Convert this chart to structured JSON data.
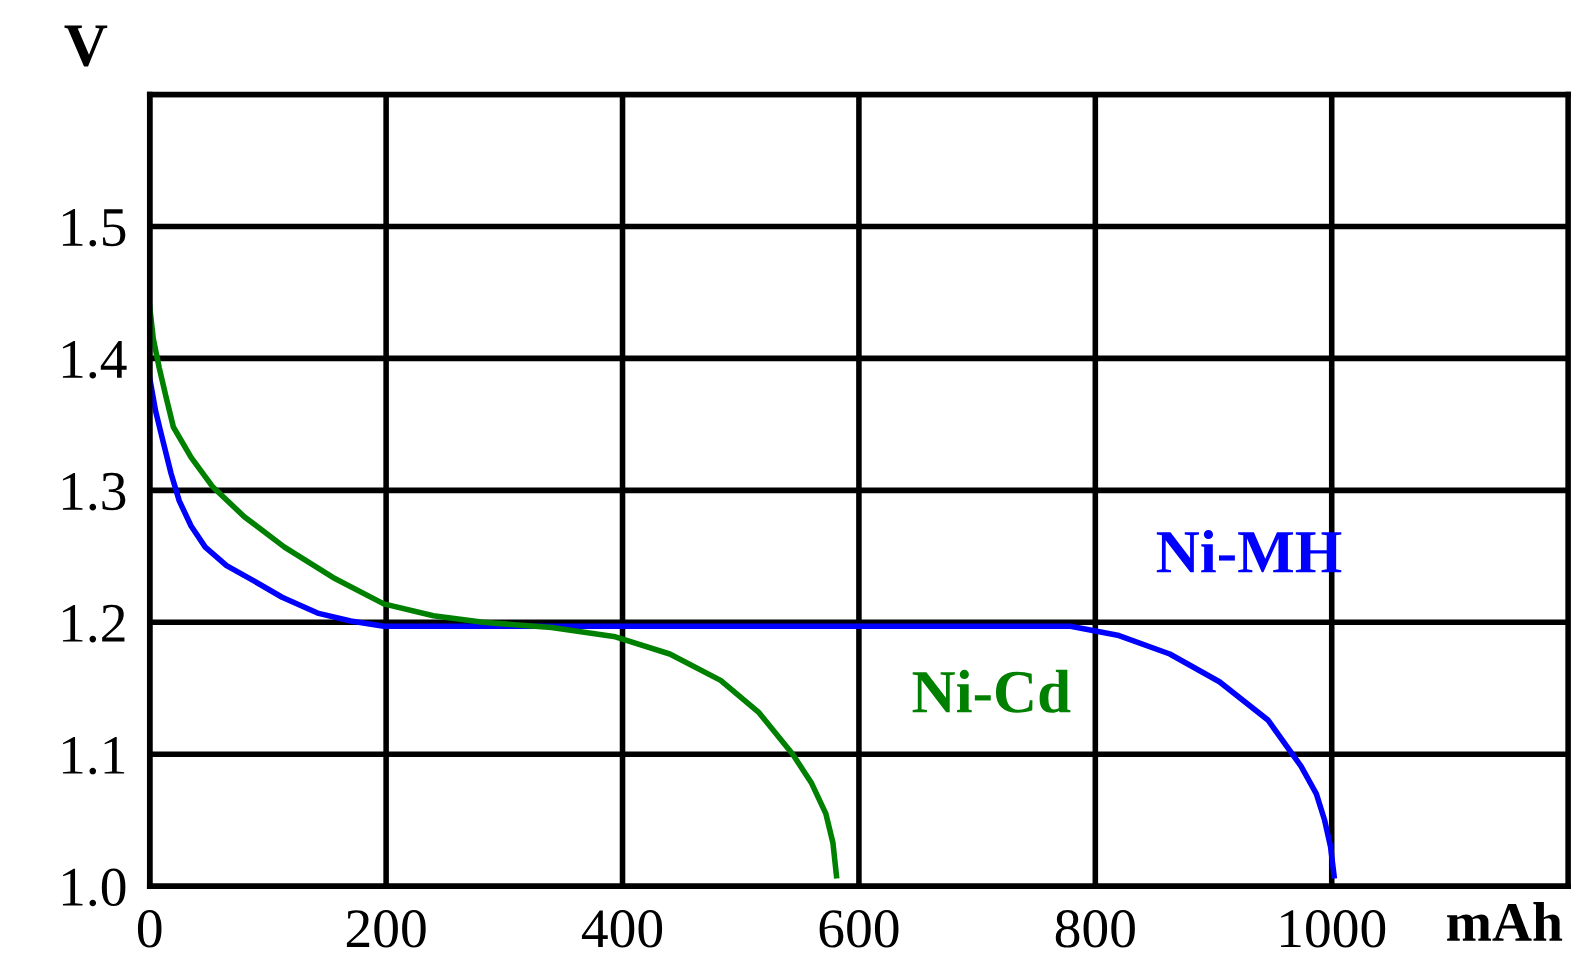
{
  "chart_data": {
    "type": "line",
    "xlabel": "mAh",
    "ylabel": "V",
    "xlim": [
      0,
      1200
    ],
    "xticks": [
      0,
      200,
      400,
      600,
      800,
      1000
    ],
    "ylim": [
      1.0,
      1.6
    ],
    "yticks": [
      {
        "value": 1.0,
        "label": "1.0"
      },
      1.1,
      1.2,
      1.3,
      1.4,
      1.5,
      {
        "value": 1.6,
        "label": null
      }
    ],
    "grid": true,
    "legend": false,
    "marker": "none",
    "line_style": "solid",
    "series": [
      {
        "name": "Ni-MH",
        "color": "#0000ff",
        "x": [
          0,
          5,
          11,
          18,
          25,
          35,
          47,
          65,
          87,
          112,
          142,
          170,
          198,
          779,
          820,
          863,
          905,
          946,
          974,
          987,
          994,
          999,
          1002
        ],
        "values": [
          1.385,
          1.36,
          1.338,
          1.313,
          1.292,
          1.273,
          1.257,
          1.243,
          1.232,
          1.219,
          1.207,
          1.201,
          1.197,
          1.197,
          1.19,
          1.176,
          1.155,
          1.126,
          1.091,
          1.07,
          1.05,
          1.03,
          1.008
        ]
      },
      {
        "name": "Ni-Cd",
        "color": "#008000",
        "x": [
          0,
          3,
          8,
          14,
          20,
          35,
          53,
          80,
          114,
          155,
          198,
          240,
          282,
          340,
          394,
          440,
          483,
          515,
          544,
          560,
          572,
          578,
          581
        ],
        "values": [
          1.439,
          1.415,
          1.393,
          1.37,
          1.348,
          1.325,
          1.303,
          1.28,
          1.257,
          1.234,
          1.214,
          1.205,
          1.2,
          1.196,
          1.189,
          1.176,
          1.156,
          1.132,
          1.1,
          1.078,
          1.055,
          1.033,
          1.008
        ]
      }
    ]
  }
}
